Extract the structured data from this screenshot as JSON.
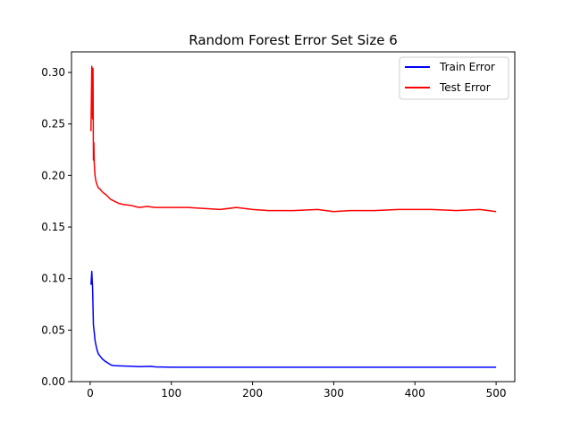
{
  "chart_data": {
    "type": "line",
    "title": "Random Forest Error Set Size 6",
    "xlabel": "",
    "ylabel": "",
    "xlim": [
      -23,
      523
    ],
    "ylim": [
      0.0,
      0.32
    ],
    "x_ticks": [
      0,
      100,
      200,
      300,
      400,
      500
    ],
    "x_tick_labels": [
      "0",
      "100",
      "200",
      "300",
      "400",
      "500"
    ],
    "y_ticks": [
      0.0,
      0.05,
      0.1,
      0.15,
      0.2,
      0.25,
      0.3
    ],
    "y_tick_labels": [
      "0.00",
      "0.05",
      "0.10",
      "0.15",
      "0.20",
      "0.25",
      "0.30"
    ],
    "grid": false,
    "legend_position": "top-right",
    "series": [
      {
        "name": "Train Error",
        "color": "#0000ff",
        "x": [
          1,
          2,
          3,
          4,
          5,
          6,
          8,
          10,
          12,
          15,
          18,
          22,
          26,
          30,
          40,
          50,
          60,
          75,
          80,
          100,
          150,
          200,
          250,
          300,
          350,
          400,
          450,
          500
        ],
        "y": [
          0.094,
          0.107,
          0.09,
          0.055,
          0.048,
          0.04,
          0.032,
          0.027,
          0.025,
          0.022,
          0.02,
          0.018,
          0.016,
          0.0155,
          0.0152,
          0.015,
          0.0145,
          0.0148,
          0.0143,
          0.014,
          0.014,
          0.014,
          0.014,
          0.014,
          0.014,
          0.014,
          0.014,
          0.014
        ]
      },
      {
        "name": "Test Error",
        "color": "#ff0000",
        "x": [
          1,
          2,
          3,
          3.5,
          4,
          4.5,
          5,
          6,
          7,
          8,
          10,
          12,
          15,
          20,
          25,
          30,
          35,
          40,
          50,
          60,
          70,
          80,
          100,
          120,
          140,
          160,
          180,
          200,
          220,
          250,
          280,
          300,
          320,
          350,
          380,
          400,
          420,
          450,
          480,
          500
        ],
        "y": [
          0.243,
          0.306,
          0.255,
          0.304,
          0.215,
          0.232,
          0.212,
          0.2,
          0.195,
          0.192,
          0.188,
          0.187,
          0.184,
          0.181,
          0.177,
          0.175,
          0.173,
          0.172,
          0.171,
          0.169,
          0.17,
          0.169,
          0.169,
          0.169,
          0.168,
          0.167,
          0.169,
          0.167,
          0.166,
          0.166,
          0.167,
          0.165,
          0.166,
          0.166,
          0.167,
          0.167,
          0.167,
          0.166,
          0.167,
          0.165
        ]
      }
    ]
  }
}
